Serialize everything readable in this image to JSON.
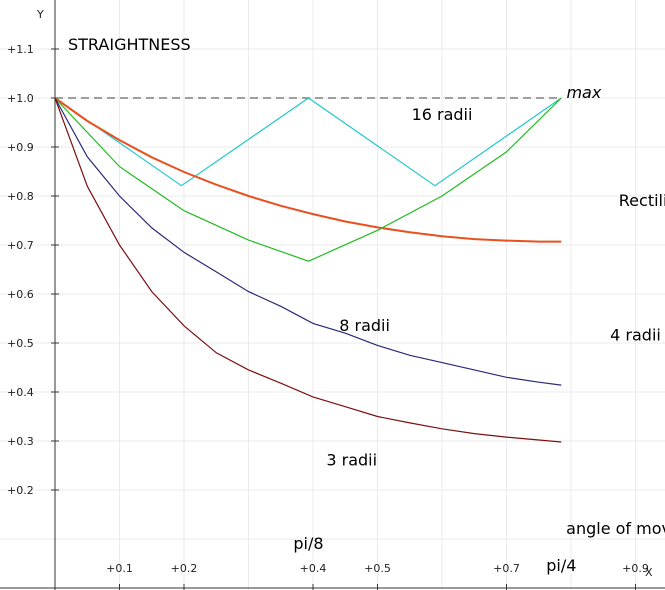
{
  "chart_data": {
    "type": "line",
    "title": "STRAIGHTNESS",
    "xlabel": "X",
    "ylabel": "Y",
    "xlim": [
      -0.05,
      1.0
    ],
    "ylim": [
      0.0,
      1.2
    ],
    "x_ticks": [
      {
        "value": 0.1,
        "label": "+0.1"
      },
      {
        "value": 0.2,
        "label": "+0.2"
      },
      {
        "value": 0.4,
        "label": "+0.4"
      },
      {
        "value": 0.5,
        "label": "+0.5"
      },
      {
        "value": 0.7,
        "label": "+0.7"
      },
      {
        "value": 0.9,
        "label": "+0.9"
      }
    ],
    "y_ticks": [
      {
        "value": 0.2,
        "label": "+0.2"
      },
      {
        "value": 0.3,
        "label": "+0.3"
      },
      {
        "value": 0.4,
        "label": "+0.4"
      },
      {
        "value": 0.5,
        "label": "+0.5"
      },
      {
        "value": 0.6,
        "label": "+0.6"
      },
      {
        "value": 0.7,
        "label": "+0.7"
      },
      {
        "value": 0.8,
        "label": "+0.8"
      },
      {
        "value": 0.9,
        "label": "+0.9"
      },
      {
        "value": 1.0,
        "label": "+1.0"
      },
      {
        "value": 1.1,
        "label": "+1.1"
      }
    ],
    "grid": true,
    "series": [
      {
        "name": "max",
        "color": "#666666",
        "dashed": true,
        "x": [
          0,
          0.785
        ],
        "y": [
          1.0,
          1.0
        ]
      },
      {
        "name": "16 radii",
        "color": "#20c8cc",
        "x": [
          0,
          0.196,
          0.393,
          0.589,
          0.785
        ],
        "y": [
          1.0,
          0.821,
          1.0,
          0.821,
          1.0
        ]
      },
      {
        "name": "Rectilinear",
        "color": "#e8501e",
        "x": [
          0,
          0.05,
          0.1,
          0.15,
          0.2,
          0.25,
          0.3,
          0.35,
          0.4,
          0.45,
          0.5,
          0.55,
          0.6,
          0.65,
          0.7,
          0.75,
          0.785
        ],
        "y": [
          1.0,
          0.953,
          0.914,
          0.879,
          0.849,
          0.823,
          0.8,
          0.78,
          0.763,
          0.748,
          0.736,
          0.726,
          0.718,
          0.712,
          0.709,
          0.707,
          0.707
        ]
      },
      {
        "name": "8 radii",
        "color": "#22bb22",
        "x": [
          0,
          0.1,
          0.2,
          0.3,
          0.393,
          0.5,
          0.6,
          0.7,
          0.785
        ],
        "y": [
          1.0,
          0.86,
          0.77,
          0.71,
          0.667,
          0.73,
          0.8,
          0.89,
          1.0
        ]
      },
      {
        "name": "4 radii",
        "color": "#2a2a78",
        "x": [
          0,
          0.05,
          0.1,
          0.15,
          0.2,
          0.25,
          0.3,
          0.35,
          0.4,
          0.45,
          0.5,
          0.55,
          0.6,
          0.65,
          0.7,
          0.75,
          0.785
        ],
        "y": [
          1.0,
          0.88,
          0.8,
          0.735,
          0.685,
          0.645,
          0.605,
          0.575,
          0.54,
          0.52,
          0.495,
          0.475,
          0.46,
          0.445,
          0.43,
          0.42,
          0.414
        ]
      },
      {
        "name": "3 radii",
        "color": "#7b1010",
        "x": [
          0,
          0.05,
          0.1,
          0.15,
          0.2,
          0.25,
          0.3,
          0.35,
          0.4,
          0.45,
          0.5,
          0.55,
          0.6,
          0.65,
          0.7,
          0.75,
          0.785
        ],
        "y": [
          1.0,
          0.82,
          0.7,
          0.605,
          0.535,
          0.48,
          0.445,
          0.418,
          0.39,
          0.37,
          0.35,
          0.337,
          0.325,
          0.315,
          0.308,
          0.302,
          0.298
        ]
      }
    ],
    "annotations": [
      {
        "text": "max",
        "x": 0.82,
        "y": 1.0
      },
      {
        "text": "16 radii",
        "x": 0.6,
        "y": 0.955
      },
      {
        "text": "Rectilinear",
        "x": 0.94,
        "y": 0.78
      },
      {
        "text": "8 radii",
        "x": 0.48,
        "y": 0.525
      },
      {
        "text": "4 radii",
        "x": 0.9,
        "y": 0.505
      },
      {
        "text": "3 radii",
        "x": 0.46,
        "y": 0.25
      },
      {
        "text": "pi/8",
        "x": 0.393,
        "y": 0.08
      },
      {
        "text": "pi/4",
        "x": 0.785,
        "y": 0.035
      },
      {
        "text": "angle of move from horizontal",
        "x": 0.98,
        "y": 0.11
      }
    ]
  }
}
